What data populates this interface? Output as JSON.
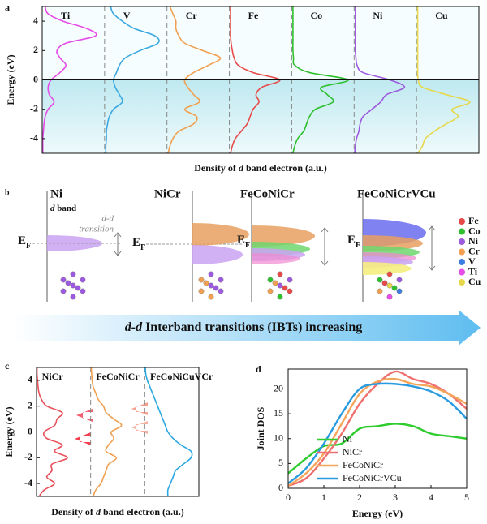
{
  "chart_data": [
    {
      "type": "dos",
      "label": "a",
      "ylabel": "Energy (eV)",
      "xlabel": [
        "Density of ",
        "d",
        " band electron (a.u.)"
      ],
      "y": [
        -5,
        -4.5,
        -4,
        -3.5,
        -3,
        -2.5,
        -2,
        -1.5,
        -1,
        -0.5,
        0,
        0.5,
        1,
        1.5,
        2,
        2.5,
        3,
        3.5,
        4,
        4.5,
        5
      ],
      "ylim": [
        -5,
        5
      ],
      "yticks": [
        -4,
        -2,
        0,
        2,
        4
      ],
      "xlim": [
        0,
        1
      ],
      "series": [
        {
          "name": "Ti",
          "color": "#e64ce6",
          "values": [
            0.01,
            0.01,
            0.01,
            0.02,
            0.03,
            0.05,
            0.1,
            0.2,
            0.12,
            0.1,
            0.15,
            0.3,
            0.4,
            0.3,
            0.25,
            0.4,
            0.9,
            0.75,
            0.35,
            0.1,
            0.05
          ]
        },
        {
          "name": "V",
          "color": "#3ba8e0",
          "values": [
            0.02,
            0.02,
            0.03,
            0.03,
            0.05,
            0.08,
            0.15,
            0.3,
            0.25,
            0.18,
            0.15,
            0.2,
            0.25,
            0.35,
            0.6,
            0.9,
            0.85,
            0.5,
            0.3,
            0.15,
            0.1
          ]
        },
        {
          "name": "Cr",
          "color": "#f0a050",
          "values": [
            0.02,
            0.05,
            0.1,
            0.2,
            0.45,
            0.5,
            0.3,
            0.55,
            0.45,
            0.35,
            0.3,
            0.45,
            0.7,
            0.9,
            0.6,
            0.3,
            0.2,
            0.15,
            0.15,
            0.1,
            0.05
          ]
        },
        {
          "name": "Fe",
          "color": "#e84a4a",
          "values": [
            0.02,
            0.05,
            0.1,
            0.2,
            0.3,
            0.35,
            0.4,
            0.5,
            0.45,
            0.55,
            0.85,
            0.4,
            0.15,
            0.08,
            0.05,
            0.03,
            0.02,
            0.02,
            0.02,
            0.02,
            0.02
          ]
        },
        {
          "name": "Co",
          "color": "#2ec02e",
          "values": [
            0.02,
            0.05,
            0.1,
            0.2,
            0.25,
            0.3,
            0.4,
            0.7,
            0.6,
            0.5,
            0.95,
            0.3,
            0.05,
            0.03,
            0.02,
            0.02,
            0.02,
            0.02,
            0.02,
            0.02,
            0.02
          ]
        },
        {
          "name": "Ni",
          "color": "#9d5ae0",
          "values": [
            0.01,
            0.02,
            0.04,
            0.08,
            0.1,
            0.15,
            0.3,
            0.45,
            0.55,
            0.85,
            0.6,
            0.15,
            0.05,
            0.03,
            0.02,
            0.02,
            0.02,
            0.02,
            0.02,
            0.02,
            0.02
          ]
        },
        {
          "name": "Cu",
          "color": "#e6d84a",
          "values": [
            0.02,
            0.1,
            0.15,
            0.3,
            0.5,
            0.7,
            0.6,
            0.9,
            0.5,
            0.1,
            0.03,
            0.02,
            0.02,
            0.02,
            0.02,
            0.02,
            0.02,
            0.02,
            0.02,
            0.02,
            0.02
          ]
        }
      ]
    },
    {
      "type": "dos",
      "label": "c",
      "ylabel": "Energy (eV)",
      "xlabel": [
        "Density of ",
        "d",
        " band electron (a.u.)"
      ],
      "y": [
        -5,
        -4.5,
        -4,
        -3.5,
        -3,
        -2.5,
        -2,
        -1.5,
        -1,
        -0.5,
        0,
        0.5,
        1,
        1.5,
        2,
        2.5,
        3,
        3.5,
        4,
        4.5,
        5
      ],
      "ylim": [
        -5,
        5
      ],
      "yticks": [
        -4,
        -2,
        0,
        2,
        4
      ],
      "xlim": [
        0,
        1
      ],
      "series": [
        {
          "name": "NiCr",
          "color": "#e8505a",
          "values": [
            0.05,
            0.15,
            0.35,
            0.2,
            0.3,
            0.3,
            0.6,
            0.35,
            0.5,
            0.2,
            0.15,
            0.35,
            0.4,
            0.5,
            0.2,
            0.1,
            0.05,
            0.03,
            0.02,
            0.01,
            0.01
          ]
        },
        {
          "name": "FeCoNiCr",
          "color": "#f0a050",
          "values": [
            0.05,
            0.1,
            0.2,
            0.25,
            0.3,
            0.35,
            0.5,
            0.3,
            0.35,
            0.45,
            0.4,
            0.6,
            0.45,
            0.3,
            0.25,
            0.15,
            0.1,
            0.05,
            0.03,
            0.02,
            0.01
          ]
        },
        {
          "name": "FeCoNiCuVCr",
          "color": "#2aa8e0",
          "values": [
            0.45,
            0.45,
            0.5,
            0.55,
            0.6,
            0.75,
            0.9,
            0.9,
            0.7,
            0.55,
            0.45,
            0.4,
            0.35,
            0.3,
            0.25,
            0.2,
            0.15,
            0.1,
            0.05,
            0.02,
            0.01
          ]
        }
      ]
    },
    {
      "type": "line",
      "label": "d",
      "ylabel": "Joint DOS",
      "xlabel": "Energy (eV)",
      "x": [
        0,
        0.5,
        1,
        1.5,
        2,
        2.5,
        3,
        3.5,
        4,
        4.5,
        5
      ],
      "xlim": [
        0,
        5
      ],
      "xticks": [
        0,
        1,
        2,
        3,
        4,
        5
      ],
      "ylim": [
        0,
        24
      ],
      "yticks": [
        0,
        5,
        10,
        15,
        20
      ],
      "legend": "lower left",
      "series": [
        {
          "name": "Ni",
          "color": "#2ecc2e",
          "values": [
            3,
            6,
            8.5,
            9,
            12,
            12.5,
            13,
            12.5,
            11,
            10.5,
            10
          ]
        },
        {
          "name": "NiCr",
          "color": "#f07070",
          "values": [
            0.5,
            2,
            6,
            11,
            17,
            21,
            23.5,
            22,
            21,
            19,
            16
          ]
        },
        {
          "name": "FeCoNiCr",
          "color": "#f5a55a",
          "values": [
            0.5,
            3,
            7,
            13,
            19,
            21.5,
            22,
            21,
            20.5,
            19,
            17
          ]
        },
        {
          "name": "FeCoNiCrVCu",
          "color": "#2a9ae0",
          "values": [
            1,
            4,
            9,
            15,
            20,
            21,
            21,
            20.5,
            19.5,
            17.5,
            14
          ]
        }
      ]
    }
  ],
  "diagram": {
    "label": "b",
    "panels": [
      {
        "title": "Ni",
        "subtitle": [
          "d",
          " band"
        ],
        "fermi": [
          "E",
          "F"
        ],
        "transition": [
          "d-d",
          "transition"
        ]
      },
      {
        "title": "NiCr",
        "fermi": [
          "E",
          "F"
        ]
      },
      {
        "title": "FeCoNiCr",
        "fermi": [
          "E",
          "F"
        ]
      },
      {
        "title": "FeCoNiCrVCu",
        "fermi": [
          "E",
          "F"
        ]
      }
    ],
    "legend": [
      {
        "name": "Fe",
        "color": "#e84a4a"
      },
      {
        "name": "Co",
        "color": "#2ec02e"
      },
      {
        "name": "Ni",
        "color": "#9d5ae0"
      },
      {
        "name": "Cr",
        "color": "#f0a050"
      },
      {
        "name": "V",
        "color": "#3b7de0"
      },
      {
        "name": "Ti",
        "color": "#e64ce6"
      },
      {
        "name": "Cu",
        "color": "#e6d84a"
      }
    ],
    "arrow_text": [
      "d-d",
      " Interband transitions (IBTs) increasing"
    ]
  }
}
